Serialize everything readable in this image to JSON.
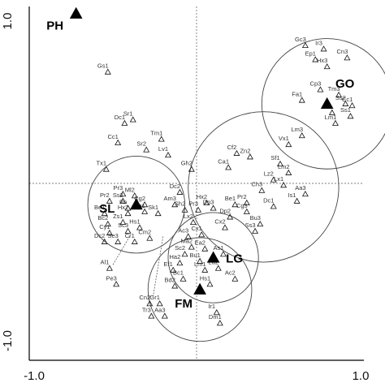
{
  "chart_data": {
    "type": "scatter",
    "xlim": [
      -1.0,
      1.0
    ],
    "ylim": [
      -1.0,
      1.0
    ],
    "x_tick_labels": [
      "-1.0",
      "1.0"
    ],
    "y_tick_labels": [
      "-1.0",
      "1.0"
    ],
    "zero_lines": true,
    "groups": [
      {
        "label": "PH",
        "x": -0.72,
        "y": 0.96
      },
      {
        "label": "GO",
        "x": 0.78,
        "y": 0.45,
        "radius": 0.39
      },
      {
        "label": "SL",
        "x": -0.36,
        "y": -0.12,
        "radius": 0.29
      },
      {
        "label": "LG",
        "x": 0.1,
        "y": -0.42,
        "radius": 0.27
      },
      {
        "label": "FM",
        "x": 0.02,
        "y": -0.6,
        "radius": 0.31
      }
    ],
    "extra_circles": [
      {
        "x": 0.4,
        "y": -0.02,
        "radius": 0.45
      }
    ],
    "points": [
      {
        "label": "Gs1",
        "x": -0.53,
        "y": 0.63
      },
      {
        "label": "Dc1",
        "x": -0.43,
        "y": 0.34
      },
      {
        "label": "Sr1",
        "x": -0.38,
        "y": 0.36
      },
      {
        "label": "Tm1",
        "x": -0.21,
        "y": 0.25
      },
      {
        "label": "Cc1",
        "x": -0.47,
        "y": 0.23
      },
      {
        "label": "Sr2",
        "x": -0.3,
        "y": 0.19
      },
      {
        "label": "Lv1",
        "x": -0.17,
        "y": 0.16
      },
      {
        "label": "Tx1",
        "x": -0.54,
        "y": 0.08
      },
      {
        "label": "Gh2",
        "x": -0.03,
        "y": 0.08
      },
      {
        "label": "Cf2",
        "x": 0.24,
        "y": 0.17
      },
      {
        "label": "Zn2",
        "x": 0.32,
        "y": 0.15
      },
      {
        "label": "Ca1",
        "x": 0.19,
        "y": 0.09
      },
      {
        "label": "Sf1",
        "x": 0.5,
        "y": 0.11
      },
      {
        "label": "Lm2",
        "x": 0.55,
        "y": 0.06
      },
      {
        "label": "Vx1",
        "x": 0.55,
        "y": 0.22
      },
      {
        "label": "Lz2",
        "x": 0.46,
        "y": 0.02
      },
      {
        "label": "Lx1",
        "x": 0.52,
        "y": -0.01
      },
      {
        "label": "Ch3",
        "x": 0.39,
        "y": -0.04
      },
      {
        "label": "Aa3",
        "x": 0.65,
        "y": -0.06
      },
      {
        "label": "Is1",
        "x": 0.6,
        "y": -0.1
      },
      {
        "label": "Dc1",
        "x": 0.46,
        "y": -0.13
      },
      {
        "label": "Pr2",
        "x": 0.3,
        "y": -0.11
      },
      {
        "label": "Be1",
        "x": 0.23,
        "y": -0.12
      },
      {
        "label": "Cg3",
        "x": 0.3,
        "y": -0.16
      },
      {
        "label": "Dp2",
        "x": 0.2,
        "y": -0.19
      },
      {
        "label": "Bu3",
        "x": 0.38,
        "y": -0.23
      },
      {
        "label": "Hx2",
        "x": 0.06,
        "y": -0.11
      },
      {
        "label": "Ss3",
        "x": 0.35,
        "y": -0.27
      },
      {
        "label": "Gc3",
        "x": 0.65,
        "y": 0.78
      },
      {
        "label": "Ir3",
        "x": 0.76,
        "y": 0.76
      },
      {
        "label": "Ep1",
        "x": 0.71,
        "y": 0.7
      },
      {
        "label": "Hx3",
        "x": 0.78,
        "y": 0.66
      },
      {
        "label": "Cn3",
        "x": 0.9,
        "y": 0.71
      },
      {
        "label": "Tm3",
        "x": 0.85,
        "y": 0.5
      },
      {
        "label": "Cp3",
        "x": 0.74,
        "y": 0.53
      },
      {
        "label": "Ss2",
        "x": 0.89,
        "y": 0.45
      },
      {
        "label": "Cc1",
        "x": 0.93,
        "y": 0.44
      },
      {
        "label": "Fa1",
        "x": 0.63,
        "y": 0.47
      },
      {
        "label": "Ir1",
        "x": 0.81,
        "y": 0.4
      },
      {
        "label": "Ss1",
        "x": 0.92,
        "y": 0.38
      },
      {
        "label": "Lm1",
        "x": 0.83,
        "y": 0.34
      },
      {
        "label": "Lm3",
        "x": 0.63,
        "y": 0.27
      },
      {
        "label": "Pr3",
        "x": -0.44,
        "y": -0.06
      },
      {
        "label": "Ml2",
        "x": -0.37,
        "y": -0.07
      },
      {
        "label": "Pr2",
        "x": -0.52,
        "y": -0.1
      },
      {
        "label": "Ss2",
        "x": -0.44,
        "y": -0.1
      },
      {
        "label": "Ph",
        "x": -0.41,
        "y": -0.14
      },
      {
        "label": "Cg2",
        "x": -0.31,
        "y": -0.12
      },
      {
        "label": "Be1",
        "x": -0.55,
        "y": -0.17
      },
      {
        "label": "Hx2",
        "x": -0.41,
        "y": -0.17
      },
      {
        "label": "Ea1",
        "x": -0.31,
        "y": -0.16
      },
      {
        "label": "Sk1",
        "x": -0.23,
        "y": -0.17
      },
      {
        "label": "Bc2",
        "x": -0.53,
        "y": -0.23
      },
      {
        "label": "Zs1",
        "x": -0.44,
        "y": -0.22
      },
      {
        "label": "Cy1",
        "x": -0.52,
        "y": -0.28
      },
      {
        "label": "Sc3",
        "x": -0.41,
        "y": -0.27
      },
      {
        "label": "Hs1",
        "x": -0.34,
        "y": -0.25
      },
      {
        "label": "Cm2",
        "x": -0.28,
        "y": -0.31
      },
      {
        "label": "Dc2",
        "x": -0.55,
        "y": -0.33
      },
      {
        "label": "Se3",
        "x": -0.47,
        "y": -0.33
      },
      {
        "label": "Cr1",
        "x": -0.37,
        "y": -0.33
      },
      {
        "label": "Dc2",
        "x": -0.1,
        "y": -0.05
      },
      {
        "label": "Am3",
        "x": -0.13,
        "y": -0.12
      },
      {
        "label": "Sh2",
        "x": -0.07,
        "y": -0.15
      },
      {
        "label": "Pr3",
        "x": 0.01,
        "y": -0.15
      },
      {
        "label": "Dp3",
        "x": 0.1,
        "y": -0.14
      },
      {
        "label": "Lx2",
        "x": -0.02,
        "y": -0.22
      },
      {
        "label": "Cx2",
        "x": 0.17,
        "y": -0.25
      },
      {
        "label": "Cx1",
        "x": 0.03,
        "y": -0.29
      },
      {
        "label": "Ac3",
        "x": -0.05,
        "y": -0.3
      },
      {
        "label": "Ma2",
        "x": -0.03,
        "y": -0.36
      },
      {
        "label": "Sc2",
        "x": -0.07,
        "y": -0.4
      },
      {
        "label": "Ea2",
        "x": 0.05,
        "y": -0.37
      },
      {
        "label": "Bu1",
        "x": 0.02,
        "y": -0.44
      },
      {
        "label": "Ha2",
        "x": -0.1,
        "y": -0.45
      },
      {
        "label": "Ef1",
        "x": -0.14,
        "y": -0.49
      },
      {
        "label": "As1",
        "x": 0.16,
        "y": -0.4
      },
      {
        "label": "La2",
        "x": 0.13,
        "y": -0.48
      },
      {
        "label": "Lm1",
        "x": 0.05,
        "y": -0.49
      },
      {
        "label": "Ac2",
        "x": 0.23,
        "y": -0.54
      },
      {
        "label": "Bc1",
        "x": -0.08,
        "y": -0.54
      },
      {
        "label": "Hs1",
        "x": 0.08,
        "y": -0.57
      },
      {
        "label": "Bd2",
        "x": -0.13,
        "y": -0.58
      },
      {
        "label": "Ir1",
        "x": 0.12,
        "y": -0.73
      },
      {
        "label": "Dm1",
        "x": 0.14,
        "y": -0.79
      },
      {
        "label": "Cn2",
        "x": -0.28,
        "y": -0.68
      },
      {
        "label": "Gr1",
        "x": -0.22,
        "y": -0.68
      },
      {
        "label": "Tr3",
        "x": -0.27,
        "y": -0.75
      },
      {
        "label": "Aa3",
        "x": -0.19,
        "y": -0.75
      },
      {
        "label": "Al1",
        "x": -0.52,
        "y": -0.48
      },
      {
        "label": "Pe3",
        "x": -0.48,
        "y": -0.57
      }
    ]
  }
}
